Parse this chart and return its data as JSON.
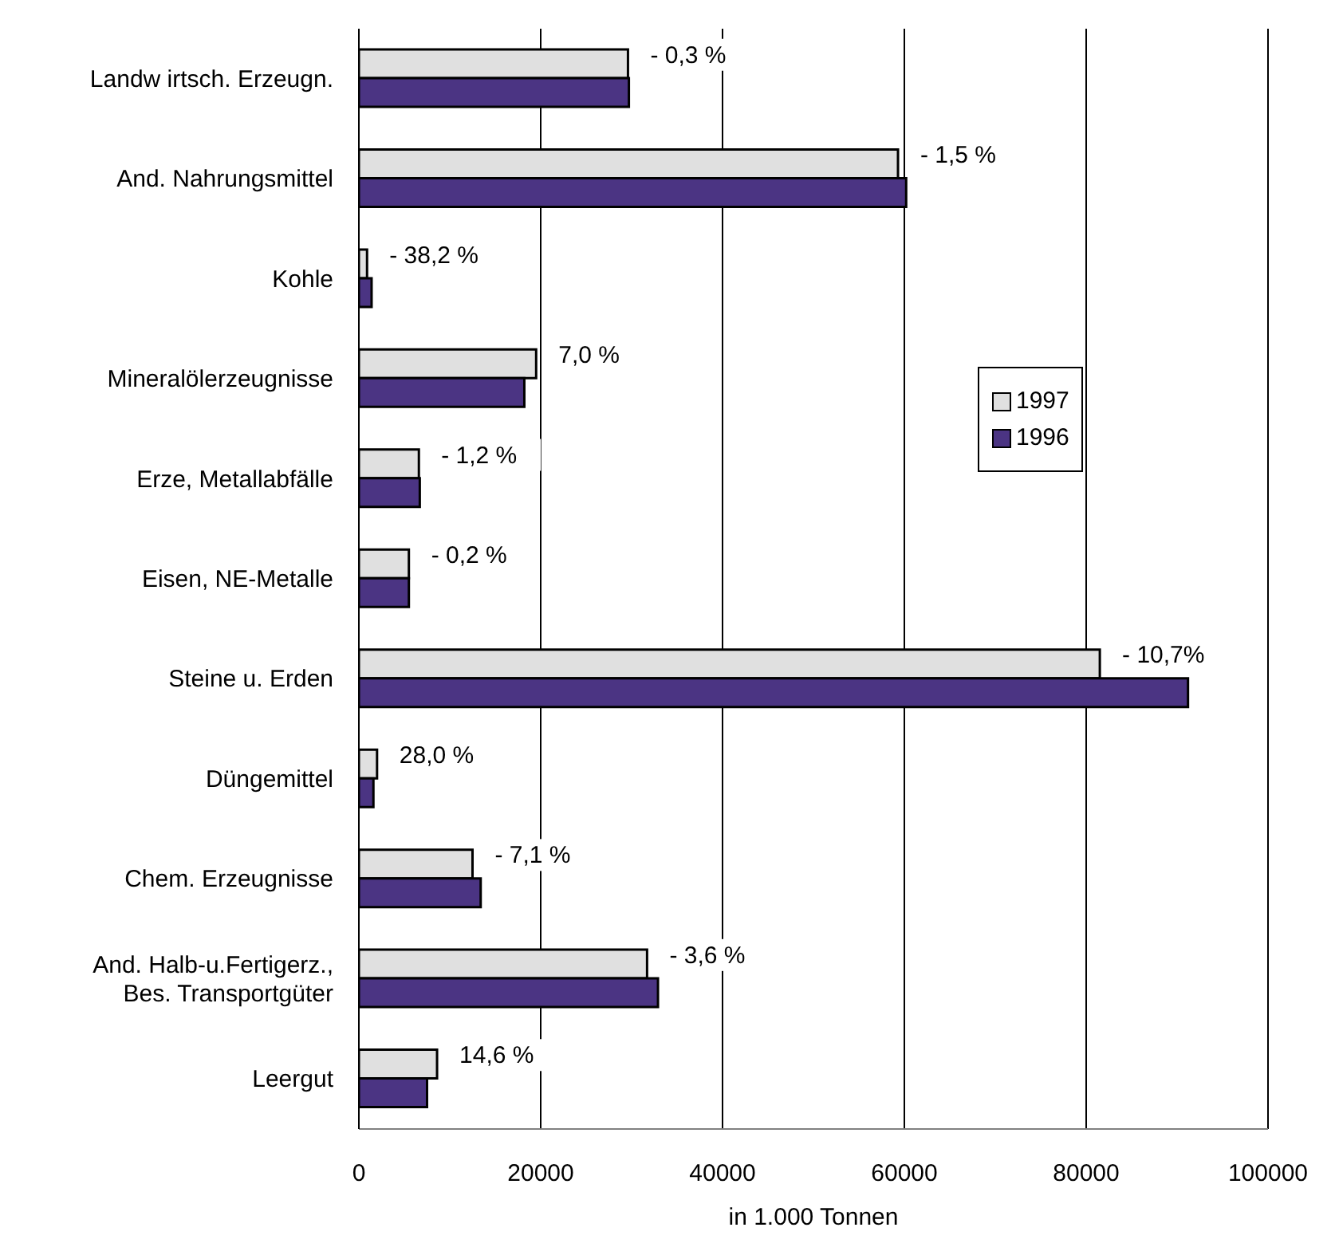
{
  "chart_data": {
    "type": "bar",
    "orientation": "horizontal",
    "xlabel": "in 1.000 Tonnen",
    "categories": [
      "Landw irtsch. Erzeugn.",
      "And. Nahrungsmittel",
      "Kohle",
      "Mineralölerzeugnisse",
      "Erze, Metallabfälle",
      "Eisen, NE-Metalle",
      "Steine u. Erden",
      "Düngemittel",
      "Chem. Erzeugnisse",
      "And. Halb-u.Fertigerz.,\nBes. Transportgüter",
      "Leergut"
    ],
    "series": [
      {
        "name": "1997",
        "color": "#e0e0e0",
        "values": [
          29600,
          59300,
          900,
          19500,
          6600,
          5500,
          81500,
          2000,
          12500,
          31700,
          8600
        ]
      },
      {
        "name": "1996",
        "color": "#4b3483",
        "values": [
          29700,
          60200,
          1400,
          18200,
          6700,
          5500,
          91200,
          1600,
          13400,
          32900,
          7500
        ]
      }
    ],
    "xlim": [
      0,
      100000
    ],
    "xticks": [
      0,
      20000,
      40000,
      60000,
      80000,
      100000
    ],
    "grid": "x",
    "legend": "right",
    "annotations": [
      {
        "text": "- 0,3 %",
        "x": 29600,
        "y": "Landw irtsch. Erzeugn."
      },
      {
        "text": "- 1,5 %",
        "x": 59300,
        "y": "And. Nahrungsmittel"
      },
      {
        "text": "- 38,2 %",
        "x": 900,
        "y": "Kohle"
      },
      {
        "text": "7,0 %",
        "x": 19500,
        "y": "Mineralölerzeugnisse"
      },
      {
        "text": "- 1,2 %",
        "x": 6600,
        "y": "Erze, Metallabfälle"
      },
      {
        "text": "- 0,2 %",
        "x": 5500,
        "y": "Eisen, NE-Metalle"
      },
      {
        "text": "- 10,7%",
        "x": 81500,
        "y": "Steine u. Erden"
      },
      {
        "text": "28,0 %",
        "x": 2000,
        "y": "Düngemittel"
      },
      {
        "text": "- 7,1 %",
        "x": 12500,
        "y": "Chem. Erzeugnisse"
      },
      {
        "text": "- 3,6 %",
        "x": 31700,
        "y": "And. Halb-u.Fertigerz.,\nBes. Transportgüter"
      },
      {
        "text": "14,6 %",
        "x": 8600,
        "y": "Leergut"
      }
    ]
  }
}
